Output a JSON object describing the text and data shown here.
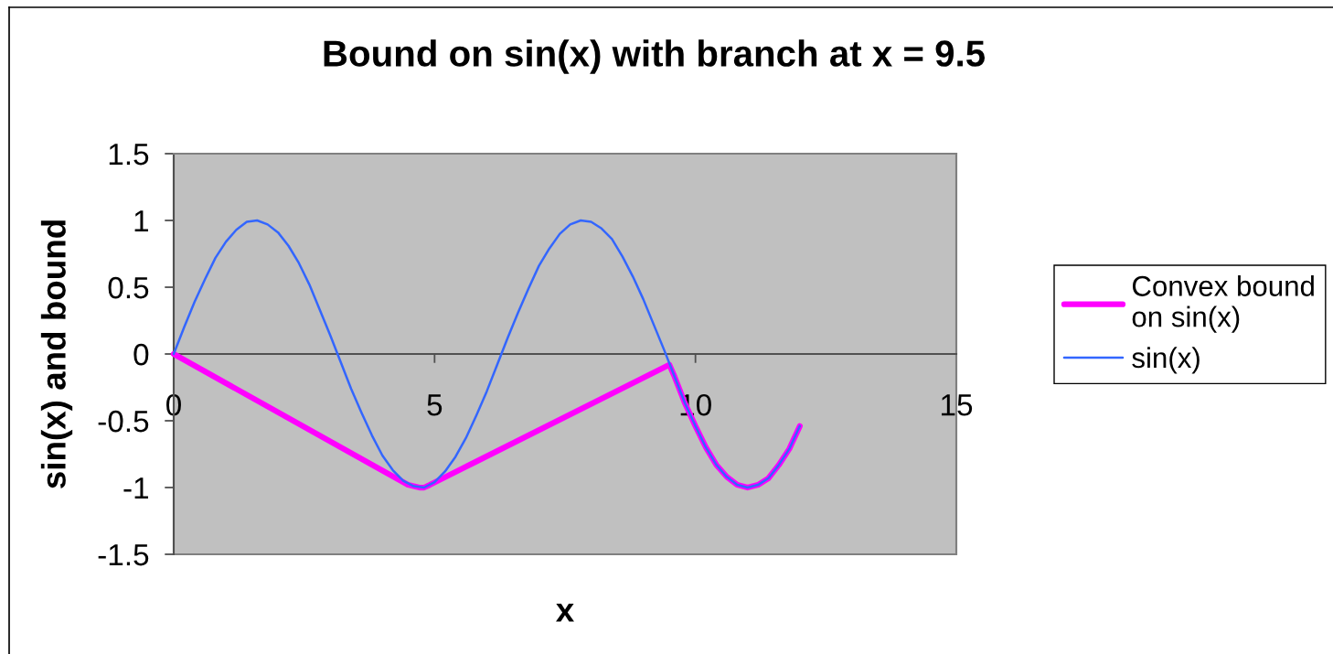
{
  "chart_data": {
    "type": "line",
    "title": "Bound on sin(x) with branch at x = 9.5",
    "xlabel": "x",
    "ylabel": "sin(x) and bound",
    "xlim": [
      0,
      15
    ],
    "xticks": [
      0,
      5,
      10,
      15
    ],
    "ylim": [
      -1.5,
      1.5
    ],
    "yticks": [
      -1.5,
      -1,
      -0.5,
      0,
      0.5,
      1,
      1.5
    ],
    "grid": false,
    "legend": "right",
    "marker": "none",
    "line_style": "solid",
    "series": [
      {
        "name": "Convex bound\non sin(x)",
        "color": "#ff00ff",
        "x": [
          0,
          4.49,
          4.6,
          4.71,
          4.8,
          4.91,
          9.5,
          9.6,
          9.8,
          10,
          10.2,
          10.4,
          10.6,
          10.8,
          11,
          11.2,
          11.4,
          11.6,
          11.8,
          12
        ],
        "values": [
          0,
          -0.98,
          -0.99,
          -1,
          -1,
          -0.98,
          -0.08,
          -0.17,
          -0.37,
          -0.54,
          -0.7,
          -0.83,
          -0.92,
          -0.98,
          -1,
          -0.98,
          -0.93,
          -0.83,
          -0.71,
          -0.54
        ]
      },
      {
        "name": "sin(x)",
        "color": "#3366ff",
        "x": [
          0,
          0.2,
          0.4,
          0.6,
          0.8,
          1,
          1.2,
          1.4,
          1.6,
          1.8,
          2,
          2.2,
          2.4,
          2.6,
          2.8,
          3,
          3.2,
          3.4,
          3.6,
          3.8,
          4,
          4.2,
          4.4,
          4.6,
          4.8,
          5,
          5.2,
          5.4,
          5.6,
          5.8,
          6,
          6.2,
          6.4,
          6.6,
          6.8,
          7,
          7.2,
          7.4,
          7.6,
          7.8,
          8,
          8.2,
          8.4,
          8.6,
          8.8,
          9,
          9.2,
          9.4,
          9.6,
          9.8,
          10,
          10.2,
          10.4,
          10.6,
          10.8,
          11,
          11.2,
          11.4,
          11.6,
          11.8,
          12
        ],
        "values": [
          0,
          0.2,
          0.39,
          0.56,
          0.72,
          0.84,
          0.93,
          0.99,
          1,
          0.97,
          0.91,
          0.81,
          0.68,
          0.52,
          0.33,
          0.14,
          -0.06,
          -0.26,
          -0.44,
          -0.61,
          -0.76,
          -0.87,
          -0.95,
          -0.99,
          -1,
          -0.96,
          -0.88,
          -0.77,
          -0.63,
          -0.46,
          -0.28,
          -0.08,
          0.12,
          0.31,
          0.49,
          0.66,
          0.79,
          0.9,
          0.97,
          1,
          0.99,
          0.94,
          0.86,
          0.73,
          0.58,
          0.41,
          0.22,
          0.03,
          -0.17,
          -0.37,
          -0.54,
          -0.7,
          -0.83,
          -0.92,
          -0.98,
          -1,
          -0.98,
          -0.93,
          -0.83,
          -0.71,
          -0.54
        ]
      }
    ]
  }
}
